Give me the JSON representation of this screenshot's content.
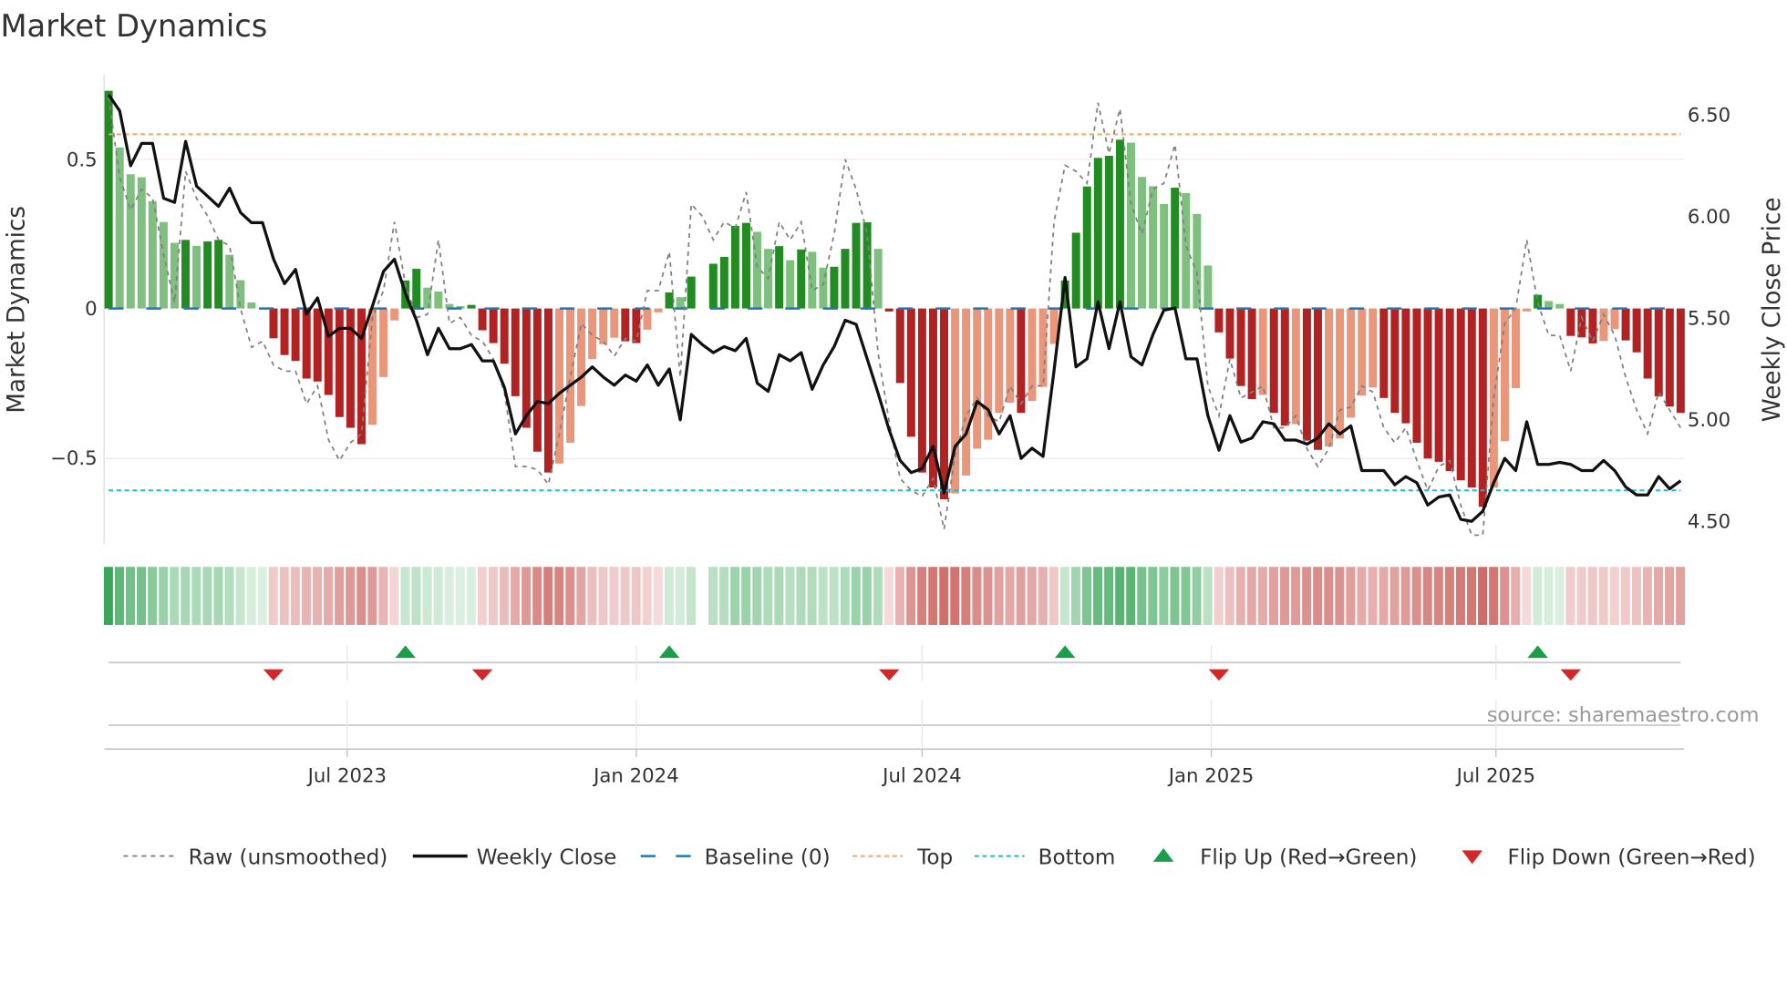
{
  "title": "Market Dynamics",
  "source": "source: sharemaestro.com",
  "colors": {
    "dark_green": "#228b22",
    "light_green": "#7fbf7f",
    "dark_red": "#b22222",
    "light_red": "#e9967a",
    "close": "#111111",
    "raw": "#808080",
    "baseline": "#1f77b4",
    "top": "#f4a460",
    "bottom": "#17becf",
    "flip_up": "#1a9e4a",
    "flip_down": "#d62728"
  },
  "chart_data": {
    "type": "bar",
    "title": "Market Dynamics",
    "ylabel": "Market Dynamics",
    "y2label": "Weekly Close Price",
    "ylim": [
      -0.79,
      0.79
    ],
    "y2lim": [
      4.41,
      6.83
    ],
    "grid": true,
    "legend_placement": "bottom",
    "yticks": [
      {
        "v": 0.5,
        "label": "0.5"
      },
      {
        "v": 0,
        "label": "0"
      },
      {
        "v": -0.5,
        "label": "−0.5"
      }
    ],
    "y2ticks": [
      {
        "v": 6.5,
        "label": "6.50"
      },
      {
        "v": 6.0,
        "label": "6.00"
      },
      {
        "v": 5.5,
        "label": "5.50"
      },
      {
        "v": 5.0,
        "label": "5.00"
      },
      {
        "v": 4.5,
        "label": "4.50"
      }
    ],
    "xticks": [
      {
        "week": 21.7,
        "label": "Jul 2023"
      },
      {
        "week": 48.0,
        "label": "Jan 2024"
      },
      {
        "week": 74.0,
        "label": "Jul 2024"
      },
      {
        "week": 100.3,
        "label": "Jan 2025"
      },
      {
        "week": 126.2,
        "label": "Jul 2025"
      }
    ],
    "top_level": 0.584,
    "bottom_level": -0.61,
    "baseline": 0,
    "dynamics": [
      0.73,
      0.54,
      0.45,
      0.44,
      0.36,
      0.29,
      0.22,
      0.23,
      0.21,
      0.225,
      0.23,
      0.18,
      0.095,
      0.02,
      0,
      -0.1,
      -0.156,
      -0.176,
      -0.235,
      -0.245,
      -0.29,
      -0.364,
      -0.4,
      -0.455,
      -0.39,
      -0.23,
      -0.04,
      0.094,
      0.133,
      0.07,
      0.057,
      0.015,
      0.008,
      0.012,
      -0.073,
      -0.116,
      -0.185,
      -0.294,
      -0.4,
      -0.48,
      -0.55,
      -0.52,
      -0.45,
      -0.327,
      -0.17,
      -0.12,
      -0.098,
      -0.11,
      -0.116,
      -0.071,
      -0.013,
      0.054,
      0.038,
      0.107,
      null,
      0.15,
      0.173,
      0.277,
      0.287,
      0.257,
      0.2,
      0.209,
      0.162,
      0.198,
      0.19,
      0.137,
      0.14,
      0.2,
      0.287,
      0.289,
      0.2,
      -0.01,
      -0.25,
      -0.43,
      -0.55,
      -0.6,
      -0.64,
      -0.62,
      -0.56,
      -0.47,
      -0.44,
      -0.35,
      -0.316,
      -0.35,
      -0.31,
      -0.263,
      -0.119,
      0.094,
      0.254,
      0.409,
      0.505,
      0.512,
      0.566,
      0.556,
      0.441,
      0.41,
      0.35,
      0.405,
      0.387,
      0.317,
      0.144,
      -0.08,
      -0.168,
      -0.26,
      -0.304,
      -0.29,
      -0.35,
      -0.393,
      -0.388,
      -0.443,
      -0.474,
      -0.463,
      -0.436,
      -0.366,
      -0.292,
      -0.265,
      -0.3,
      -0.35,
      -0.385,
      -0.45,
      -0.503,
      -0.514,
      -0.545,
      -0.576,
      -0.6,
      -0.665,
      -0.6,
      -0.445,
      -0.267,
      -0.01,
      0.046,
      0.025,
      0.015,
      -0.092,
      -0.097,
      -0.117,
      -0.109,
      -0.069,
      -0.107,
      -0.147,
      -0.235,
      -0.295,
      -0.329,
      -0.35
    ],
    "raw": [
      0.71,
      0.44,
      0.33,
      0.4,
      0.37,
      0.18,
      0.02,
      0.46,
      0.37,
      0.31,
      0.23,
      0.21,
      0.0,
      -0.13,
      -0.11,
      -0.19,
      -0.21,
      -0.21,
      -0.32,
      -0.26,
      -0.44,
      -0.51,
      -0.45,
      -0.42,
      -0.03,
      0.06,
      0.29,
      0.08,
      -0.03,
      -0.02,
      0.23,
      -0.05,
      -0.03,
      -0.09,
      -0.11,
      -0.17,
      -0.28,
      -0.53,
      -0.53,
      -0.54,
      -0.59,
      -0.42,
      -0.23,
      -0.05,
      -0.09,
      -0.11,
      -0.16,
      -0.1,
      -0.11,
      0.06,
      0.06,
      0.19,
      -0.23,
      0.35,
      0.31,
      0.23,
      0.29,
      0.27,
      0.39,
      0.14,
      0.1,
      0.29,
      0.23,
      0.29,
      0.06,
      0.08,
      0.25,
      0.5,
      0.4,
      0.25,
      -0.15,
      -0.38,
      -0.57,
      -0.61,
      -0.63,
      -0.57,
      -0.74,
      -0.49,
      -0.36,
      -0.3,
      -0.36,
      -0.38,
      -0.26,
      -0.32,
      -0.26,
      -0.26,
      0.29,
      0.48,
      0.46,
      0.42,
      0.69,
      0.52,
      0.67,
      0.35,
      0.25,
      0.4,
      0.42,
      0.55,
      0.21,
      0.12,
      -0.26,
      -0.36,
      -0.17,
      -0.3,
      -0.28,
      -0.26,
      -0.4,
      -0.4,
      -0.36,
      -0.47,
      -0.53,
      -0.47,
      -0.34,
      -0.33,
      -0.26,
      -0.28,
      -0.4,
      -0.45,
      -0.4,
      -0.51,
      -0.61,
      -0.53,
      -0.51,
      -0.66,
      -0.76,
      -0.76,
      -0.3,
      -0.05,
      0.0,
      0.23,
      0.02,
      -0.09,
      -0.09,
      -0.21,
      -0.03,
      -0.11,
      -0.02,
      -0.09,
      -0.23,
      -0.34,
      -0.42,
      -0.28,
      -0.34,
      -0.4
    ],
    "weekly_close": [
      6.6,
      6.52,
      6.25,
      6.36,
      6.36,
      6.09,
      6.07,
      6.37,
      6.15,
      6.1,
      6.05,
      6.14,
      6.02,
      5.97,
      5.97,
      5.79,
      5.67,
      5.74,
      5.52,
      5.6,
      5.41,
      5.45,
      5.45,
      5.4,
      5.56,
      5.73,
      5.79,
      5.62,
      5.49,
      5.32,
      5.45,
      5.35,
      5.35,
      5.37,
      5.29,
      5.29,
      5.16,
      4.93,
      5.02,
      5.09,
      5.08,
      5.13,
      5.17,
      5.21,
      5.26,
      5.21,
      5.17,
      5.22,
      5.19,
      5.27,
      5.17,
      5.25,
      5.0,
      5.42,
      5.37,
      5.33,
      5.36,
      5.34,
      5.4,
      5.18,
      5.14,
      5.32,
      5.29,
      5.33,
      5.15,
      5.27,
      5.36,
      5.49,
      5.47,
      5.3,
      5.13,
      4.95,
      4.8,
      4.74,
      4.76,
      4.87,
      4.64,
      4.87,
      4.93,
      5.09,
      5.05,
      4.93,
      5.02,
      4.81,
      4.86,
      4.82,
      5.24,
      5.7,
      5.26,
      5.3,
      5.58,
      5.35,
      5.58,
      5.31,
      5.27,
      5.42,
      5.54,
      5.55,
      5.3,
      5.3,
      5.02,
      4.85,
      5.02,
      4.89,
      4.91,
      4.99,
      4.98,
      4.9,
      4.9,
      4.88,
      4.91,
      4.98,
      4.93,
      4.97,
      4.75,
      4.75,
      4.75,
      4.68,
      4.72,
      4.69,
      4.58,
      4.62,
      4.63,
      4.51,
      4.5,
      4.55,
      4.69,
      4.81,
      4.75,
      4.99,
      4.78,
      4.78,
      4.79,
      4.78,
      4.75,
      4.75,
      4.8,
      4.75,
      4.67,
      4.63,
      4.63,
      4.72,
      4.66,
      4.7
    ],
    "flip_up_weeks": [
      27,
      51,
      87,
      130
    ],
    "flip_down_weeks": [
      15,
      34,
      71,
      101,
      133
    ],
    "legend": [
      {
        "key": "raw",
        "label": "Raw (unsmoothed)"
      },
      {
        "key": "close",
        "label": "Weekly Close"
      },
      {
        "key": "baseline",
        "label": "Baseline (0)"
      },
      {
        "key": "top",
        "label": "Top"
      },
      {
        "key": "bottom",
        "label": "Bottom"
      },
      {
        "key": "flip_up",
        "label": "Flip Up (Red→Green)"
      },
      {
        "key": "flip_down",
        "label": "Flip Down (Green→Red)"
      }
    ]
  }
}
